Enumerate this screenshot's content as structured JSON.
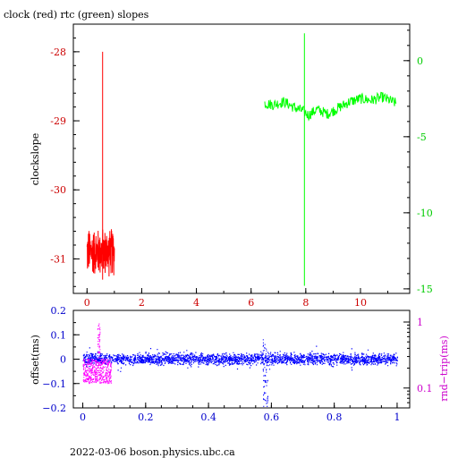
{
  "chart_data": [
    {
      "type": "line",
      "title": "clock (red) rtc (green) slopes",
      "xlabel": "",
      "ylabel": "clockslope",
      "xlim": [
        -0.5,
        11.8
      ],
      "x_ticks": [
        "0",
        "2",
        "4",
        "6",
        "8",
        "10"
      ],
      "ylim_left": [
        -31.5,
        -27.6
      ],
      "y_ticks_left": [
        "-28",
        "-29",
        "-30",
        "-31"
      ],
      "ylim_right": [
        -15.3,
        2.4
      ],
      "y_ticks_right": [
        "0",
        "-5",
        "-10",
        "-15"
      ],
      "series": [
        {
          "color": "#ff0000",
          "axis": "left",
          "x_range": [
            0.0,
            1.0
          ],
          "y_band": [
            -31.2,
            -30.6
          ],
          "spike": {
            "x": 0.57,
            "y_top": -28.0,
            "y_bottom": -31.3
          }
        },
        {
          "color": "#00ff00",
          "axis": "right",
          "x": [
            6.5,
            6.8,
            7.2,
            7.6,
            7.9,
            8.1,
            8.4,
            8.8,
            9.2,
            9.6,
            10.0,
            10.4,
            10.8,
            11.3
          ],
          "y": [
            -2.8,
            -2.9,
            -2.7,
            -3.1,
            -3.3,
            -3.6,
            -3.2,
            -3.5,
            -3.1,
            -2.7,
            -2.5,
            -2.6,
            -2.4,
            -2.8
          ],
          "spike": {
            "x": 7.95,
            "y_top": 1.8,
            "y_bottom": -14.8
          }
        }
      ],
      "grid": false,
      "colors": {
        "left_axis": "#cc0000",
        "right_axis": "#00cc00"
      }
    },
    {
      "type": "scatter",
      "title": "",
      "xlabel": "",
      "ylabel": "offset(ms)",
      "ylabel_right": "rnd−trip(ms)",
      "xlim": [
        -0.03,
        1.04
      ],
      "x_ticks": [
        "0",
        "0.2",
        "0.4",
        "0.6",
        "0.8",
        "1"
      ],
      "ylim": [
        -0.2,
        0.2
      ],
      "y_ticks": [
        "0.2",
        "0.1",
        "0",
        "−0.1",
        "−0.2"
      ],
      "ylim_right_log": [
        0.05,
        1.5
      ],
      "y_ticks_right": [
        "1",
        "0.1"
      ],
      "series": [
        {
          "color": "#0000ff",
          "x_range": [
            0.0,
            1.0
          ],
          "y_band": [
            -0.02,
            0.02
          ],
          "outliers": {
            "x": 0.58,
            "y_range": [
              -0.2,
              0.08
            ]
          }
        },
        {
          "color": "#ff00ff",
          "x_range": [
            0.0,
            0.09
          ],
          "y_band": [
            -0.1,
            0.0
          ],
          "spike": {
            "x": 0.05,
            "y_top": 0.15
          }
        }
      ],
      "colors": {
        "left_axis": "#0000cc",
        "right_axis": "#cc00cc"
      }
    }
  ],
  "footer": "2022-03-06  boson.physics.ubc.ca"
}
